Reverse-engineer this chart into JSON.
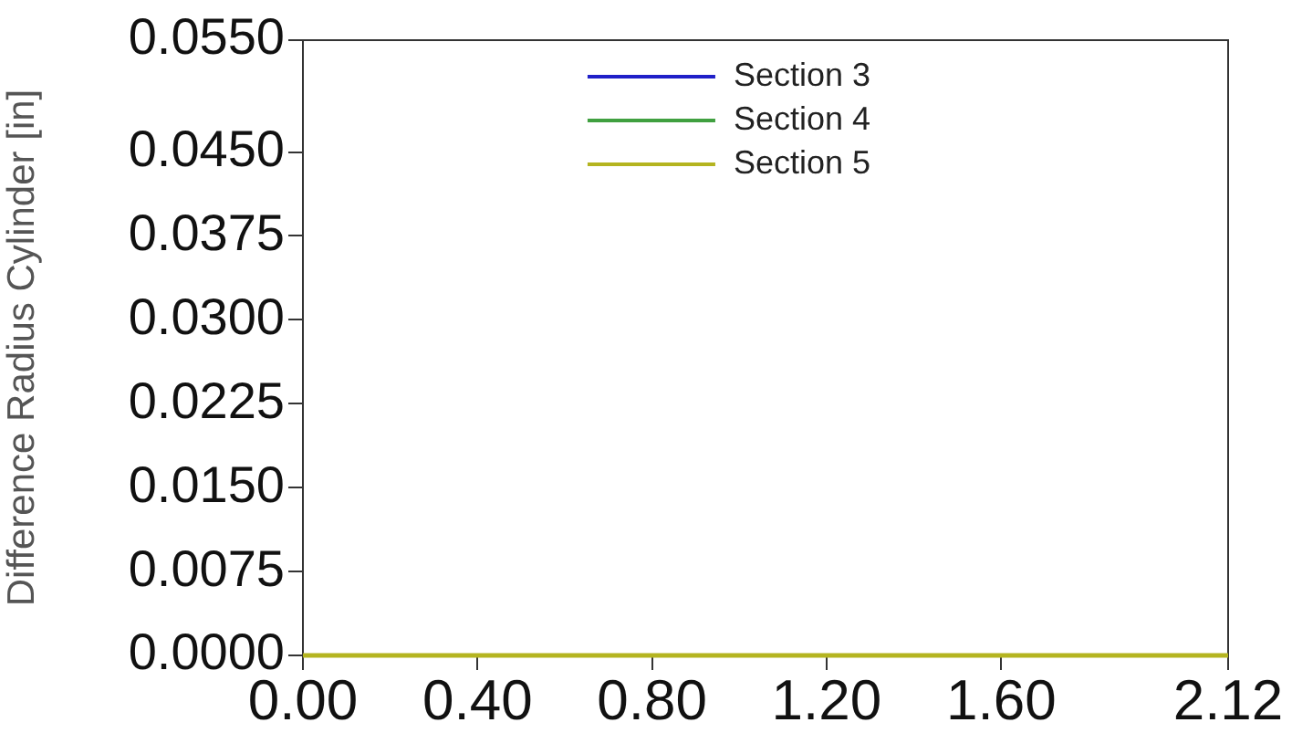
{
  "chart_data": {
    "type": "line",
    "x": [
      0,
      2.12
    ],
    "ylabel": "Difference Radius Cylinder [in]",
    "xlim": [
      0,
      2.12
    ],
    "xticks": [
      {
        "value": 0,
        "label": "0.00"
      },
      {
        "value": 0.4,
        "label": "0.40"
      },
      {
        "value": 0.8,
        "label": "0.80"
      },
      {
        "value": 1.2,
        "label": "1.20"
      },
      {
        "value": 1.6,
        "label": "1.60"
      },
      {
        "value": 2.12,
        "label": "2.12"
      }
    ],
    "ylim": [
      0,
      0.055
    ],
    "yticks": [
      {
        "value": 0,
        "label": "0.0000"
      },
      {
        "value": 0.0075,
        "label": "0.0075"
      },
      {
        "value": 0.015,
        "label": "0.0150"
      },
      {
        "value": 0.0225,
        "label": "0.0225"
      },
      {
        "value": 0.03,
        "label": "0.0300"
      },
      {
        "value": 0.0375,
        "label": "0.0375"
      },
      {
        "value": 0.045,
        "label": "0.0450"
      },
      {
        "value": 0.055,
        "label": "0.0550"
      }
    ],
    "series": [
      {
        "name": "Section 3",
        "color": "#2020c8",
        "values": [
          null,
          null
        ]
      },
      {
        "name": "Section 4",
        "color": "#40a040",
        "values": [
          null,
          null
        ]
      },
      {
        "name": "Section 5",
        "color": "#b4b420",
        "values": [
          0,
          0
        ]
      }
    ],
    "legend": "top",
    "grid": false,
    "marker": "none",
    "line_style": "solid"
  }
}
